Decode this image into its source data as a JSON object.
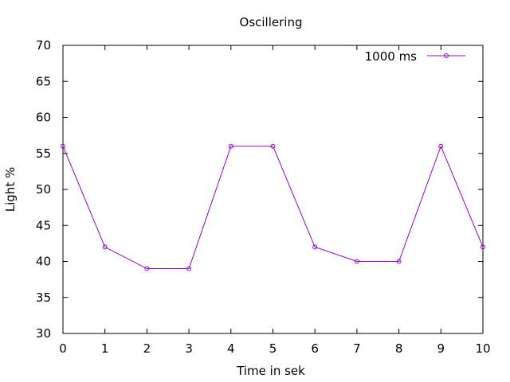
{
  "chart_data": {
    "type": "line",
    "title": "Oscillering",
    "xlabel": "Time in sek",
    "ylabel": "Light %",
    "xlim": [
      0,
      10
    ],
    "ylim": [
      30,
      70
    ],
    "xticks": [
      "0",
      "1",
      "2",
      "3",
      "4",
      "5",
      "6",
      "7",
      "8",
      "9",
      "10"
    ],
    "yticks": [
      "30",
      "35",
      "40",
      "45",
      "50",
      "55",
      "60",
      "65",
      "70"
    ],
    "grid": false,
    "legend_position": "top-right",
    "series": [
      {
        "name": "1000 ms",
        "color": "#9400d3",
        "marker": "circle",
        "x": [
          0,
          1,
          2,
          3,
          4,
          5,
          6,
          7,
          8,
          9,
          10
        ],
        "y": [
          56,
          42,
          39,
          39,
          56,
          56,
          42,
          40,
          40,
          56,
          42
        ]
      }
    ]
  }
}
